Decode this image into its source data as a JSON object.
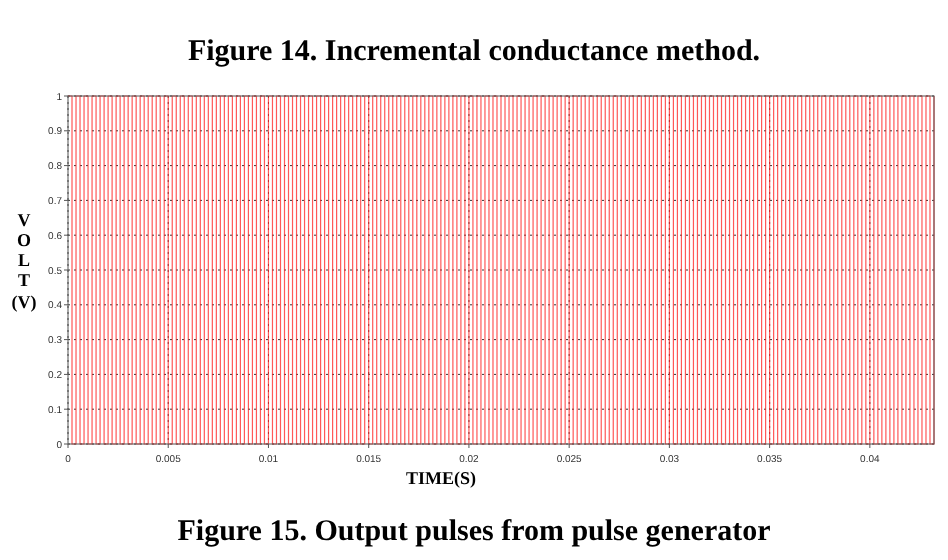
{
  "chart_data": {
    "type": "step",
    "title": "Figure 15. Output pulses from pulse generator",
    "annotations": [
      "Figure 14. Incremental conductance method."
    ],
    "xlabel": "TIME(S)",
    "ylabel": "VOLT (V)",
    "x": [
      0,
      0.0002,
      0.0004,
      0.0006,
      0.0008,
      0.001,
      0.0012,
      0.0014,
      0.0016,
      0.0018,
      0.002,
      0.0022,
      0.0024,
      0.0026,
      0.0028,
      0.003,
      0.0032,
      0.0034,
      0.0036,
      0.0038,
      0.004,
      0.0042,
      0.0044,
      0.0046,
      0.0048,
      0.005,
      0.0052,
      0.0054,
      0.0056,
      0.0058,
      0.006,
      0.0062,
      0.0064,
      0.0066,
      0.0068,
      0.007,
      0.0072,
      0.0074,
      0.0076,
      0.0078,
      0.008,
      0.0082,
      0.0084,
      0.0086,
      0.0088,
      0.009,
      0.0092,
      0.0094,
      0.0096,
      0.0098,
      0.01,
      0.0102,
      0.0104,
      0.0106,
      0.0108,
      0.011,
      0.0112,
      0.0114,
      0.0116,
      0.0118,
      0.012,
      0.0122,
      0.0124,
      0.0126,
      0.0128,
      0.013,
      0.0132,
      0.0134,
      0.0136,
      0.0138,
      0.014,
      0.0142,
      0.0144,
      0.0146,
      0.0148,
      0.015,
      0.0152,
      0.0154,
      0.0156,
      0.0158,
      0.016,
      0.0162,
      0.0164,
      0.0166,
      0.0168,
      0.017,
      0.0172,
      0.0174,
      0.0176,
      0.0178,
      0.018,
      0.0182,
      0.0184,
      0.0186,
      0.0188,
      0.019,
      0.0192,
      0.0194,
      0.0196,
      0.0198,
      0.02,
      0.0202,
      0.0204,
      0.0206,
      0.0208,
      0.021,
      0.0212,
      0.0214,
      0.0216,
      0.0218,
      0.022,
      0.0222,
      0.0224,
      0.0226,
      0.0228,
      0.023,
      0.0232,
      0.0234,
      0.0236,
      0.0238,
      0.024,
      0.0242,
      0.0244,
      0.0246,
      0.0248,
      0.025,
      0.0252,
      0.0254,
      0.0256,
      0.0258,
      0.026,
      0.0262,
      0.0264,
      0.0266,
      0.0268,
      0.027,
      0.0272,
      0.0274,
      0.0276,
      0.0278,
      0.028,
      0.0282,
      0.0284,
      0.0286,
      0.0288,
      0.029,
      0.0292,
      0.0294,
      0.0296,
      0.0298,
      0.03,
      0.0302,
      0.0304,
      0.0306,
      0.0308,
      0.031,
      0.0312,
      0.0314,
      0.0316,
      0.0318,
      0.032,
      0.0322,
      0.0324,
      0.0326,
      0.0328,
      0.033,
      0.0332,
      0.0334,
      0.0336,
      0.0338,
      0.034,
      0.0342,
      0.0344,
      0.0346,
      0.0348,
      0.035,
      0.0352,
      0.0354,
      0.0356,
      0.0358,
      0.036,
      0.0362,
      0.0364,
      0.0366,
      0.0368,
      0.037,
      0.0372,
      0.0374,
      0.0376,
      0.0378,
      0.038,
      0.0382,
      0.0384,
      0.0386,
      0.0388,
      0.039,
      0.0392,
      0.0394,
      0.0396,
      0.0398,
      0.04,
      0.0402,
      0.0404,
      0.0406,
      0.0408,
      0.041,
      0.0412,
      0.0414,
      0.0416,
      0.0418,
      0.042,
      0.0422,
      0.0424,
      0.0426,
      0.0428,
      0.043,
      0.0432
    ],
    "series": [
      {
        "color": "#ff2020",
        "values": [
          1,
          0,
          1,
          0,
          1,
          0,
          1,
          0,
          1,
          0,
          1,
          0,
          1,
          0,
          1,
          0,
          1,
          0,
          1,
          0,
          1,
          0,
          1,
          0,
          1,
          0,
          1,
          0,
          1,
          0,
          1,
          0,
          1,
          0,
          1,
          0,
          1,
          0,
          1,
          0,
          1,
          0,
          1,
          0,
          1,
          0,
          1,
          0,
          1,
          0,
          1,
          0,
          1,
          0,
          1,
          0,
          1,
          0,
          1,
          0,
          1,
          0,
          1,
          0,
          1,
          0,
          1,
          0,
          1,
          0,
          1,
          0,
          1,
          0,
          1,
          0,
          1,
          0,
          1,
          0,
          1,
          0,
          1,
          0,
          1,
          0,
          1,
          0,
          1,
          0,
          1,
          0,
          1,
          0,
          1,
          0,
          1,
          0,
          1,
          0,
          1,
          0,
          1,
          0,
          1,
          0,
          1,
          0,
          1,
          0,
          1,
          0,
          1,
          0,
          1,
          0,
          1,
          0,
          1,
          0,
          1,
          0,
          1,
          0,
          1,
          0,
          1,
          0,
          1,
          0,
          1,
          0,
          1,
          0,
          1,
          0,
          1,
          0,
          1,
          0,
          1,
          0,
          1,
          0,
          1,
          0,
          1,
          0,
          1,
          0,
          1,
          0,
          1,
          0,
          1,
          0,
          1,
          0,
          1,
          0,
          1,
          0,
          1,
          0,
          1,
          0,
          1,
          0,
          1,
          0,
          1,
          0,
          1,
          0,
          1,
          0,
          1,
          0,
          1,
          0,
          1,
          0,
          1,
          0,
          1,
          0,
          1,
          0,
          1,
          0,
          1,
          0,
          1,
          0,
          1,
          0,
          1,
          0,
          1,
          0,
          1,
          0,
          1,
          0,
          1,
          0,
          1,
          0,
          1,
          0,
          1,
          0,
          1,
          0,
          1,
          0,
          1
        ]
      }
    ],
    "xlim": [
      0,
      0.0432
    ],
    "xticks": [
      0,
      0.005,
      0.01,
      0.015,
      0.02,
      0.025,
      0.03,
      0.035,
      0.04
    ],
    "ylim": [
      0,
      1
    ],
    "yticks": [
      0,
      0.1,
      0.2,
      0.3,
      0.4,
      0.5,
      0.6,
      0.7,
      0.8,
      0.9,
      1
    ],
    "grid": true,
    "line_style": "solid"
  }
}
